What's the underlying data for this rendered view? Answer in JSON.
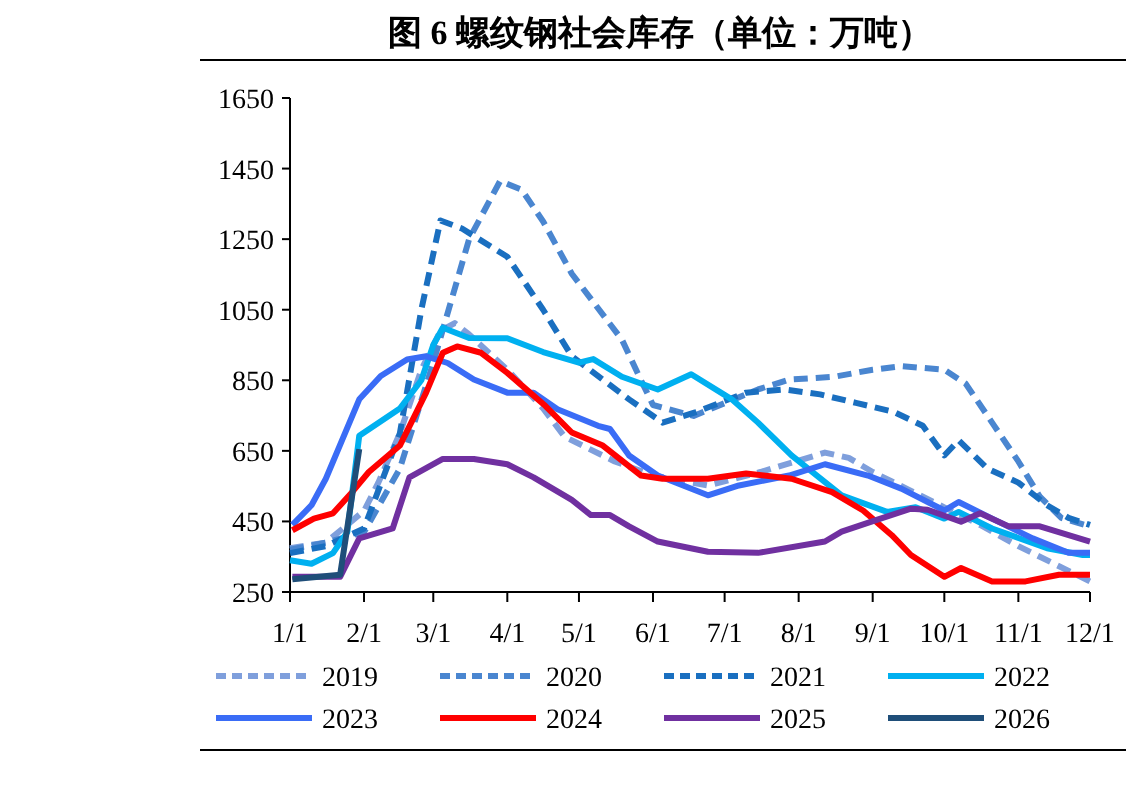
{
  "chart_data": {
    "type": "line",
    "title": "图 6 螺纹钢社会库存（单位：万吨）",
    "xlim": [
      "--01-01",
      "--12-01"
    ],
    "xticks": [
      {
        "value": "--01-01",
        "label": "1/1"
      },
      {
        "value": "--02-01",
        "label": "2/1"
      },
      {
        "value": "--03-01",
        "label": "3/1"
      },
      {
        "value": "--04-01",
        "label": "4/1"
      },
      {
        "value": "--05-01",
        "label": "5/1"
      },
      {
        "value": "--06-01",
        "label": "6/1"
      },
      {
        "value": "--07-01",
        "label": "7/1"
      },
      {
        "value": "--08-01",
        "label": "8/1"
      },
      {
        "value": "--09-01",
        "label": "9/1"
      },
      {
        "value": "--10-01",
        "label": "10/1"
      },
      {
        "value": "--11-01",
        "label": "11/1"
      },
      {
        "value": "--12-01",
        "label": "12/1"
      }
    ],
    "ylim": [
      250,
      1650
    ],
    "yticks": [
      250,
      450,
      650,
      850,
      1050,
      1250,
      1450,
      1650
    ],
    "grid": false,
    "legend": "bottom",
    "marker": "none",
    "series": [
      {
        "name": "2019",
        "color": "#7f9fdc",
        "line_style": "dashed",
        "x": [
          "--01-01",
          "--01-16",
          "--02-01",
          "--02-07",
          "--02-16",
          "--02-25",
          "--03-04",
          "--03-10",
          "--03-16",
          "--04-01",
          "--04-16",
          "--04-25",
          "--05-16",
          "--06-01",
          "--06-24",
          "--07-16",
          "--08-12",
          "--08-22",
          "--09-01",
          "--09-16",
          "--10-01",
          "--10-16",
          "--11-01",
          "--11-16",
          "--12-01"
        ],
        "values": [
          374,
          390,
          480,
          560,
          700,
          880,
          990,
          1012,
          980,
          880,
          770,
          690,
          620,
          580,
          552,
          590,
          645,
          630,
          590,
          540,
          490,
          440,
          380,
          330,
          280
        ]
      },
      {
        "name": "2020",
        "color": "#4a86d0",
        "line_style": "dashed",
        "x": [
          "--01-01",
          "--01-16",
          "--02-01",
          "--02-16",
          "--03-01",
          "--03-16",
          "--03-29",
          "--04-07",
          "--04-16",
          "--04-28",
          "--05-19",
          "--05-27",
          "--06-01",
          "--06-18",
          "--07-15",
          "--07-28",
          "--08-16",
          "--09-01",
          "--09-13",
          "--10-01",
          "--10-10",
          "--10-22",
          "--11-01",
          "--11-10",
          "--11-19",
          "--12-01"
        ],
        "values": [
          370,
          390,
          420,
          600,
          900,
          1250,
          1415,
          1390,
          1300,
          1152,
          965,
          850,
          780,
          749,
          824,
          852,
          860,
          880,
          890,
          880,
          840,
          720,
          620,
          520,
          460,
          436
        ]
      },
      {
        "name": "2021",
        "color": "#1a6fc0",
        "line_style": "dashed",
        "x": [
          "--01-01",
          "--01-16",
          "--02-01",
          "--02-16",
          "--02-25",
          "--03-04",
          "--03-13",
          "--04-01",
          "--04-16",
          "--04-28",
          "--05-22",
          "--06-05",
          "--06-19",
          "--07-10",
          "--07-26",
          "--08-10",
          "--08-25",
          "--09-10",
          "--09-22",
          "--10-01",
          "--10-07",
          "--10-19",
          "--11-01",
          "--11-13",
          "--11-22",
          "--12-01"
        ],
        "values": [
          360,
          380,
          430,
          700,
          1050,
          1303,
          1280,
          1200,
          1050,
          918,
          796,
          730,
          760,
          815,
          824,
          810,
          786,
          760,
          721,
          637,
          680,
          600,
          560,
          496,
          460,
          440
        ]
      },
      {
        "name": "2022",
        "color": "#00b0f0",
        "line_style": "solid",
        "x": [
          "--01-01",
          "--01-10",
          "--01-19",
          "--01-25",
          "--01-30",
          "--02-16",
          "--02-25",
          "--03-01",
          "--03-05",
          "--03-16",
          "--04-01",
          "--04-16",
          "--05-01",
          "--05-07",
          "--05-19",
          "--06-03",
          "--06-17",
          "--07-04",
          "--07-15",
          "--07-29",
          "--08-19",
          "--09-07",
          "--09-19",
          "--10-01",
          "--10-07",
          "--10-21",
          "--11-13",
          "--11-28",
          "--12-01"
        ],
        "values": [
          340,
          330,
          360,
          420,
          693,
          770,
          850,
          950,
          999,
          970,
          969,
          930,
          900,
          910,
          860,
          824,
          867,
          796,
          730,
          637,
          524,
          477,
          490,
          458,
          477,
          430,
          374,
          355,
          355
        ]
      },
      {
        "name": "2023",
        "color": "#3a6cf6",
        "line_style": "solid",
        "x": [
          "--01-02",
          "--01-10",
          "--01-16",
          "--01-30",
          "--02-08",
          "--02-19",
          "--02-27",
          "--03-07",
          "--03-18",
          "--04-01",
          "--04-12",
          "--04-22",
          "--05-09",
          "--05-14",
          "--05-22",
          "--06-03",
          "--06-24",
          "--07-07",
          "--07-28",
          "--08-12",
          "--08-30",
          "--09-13",
          "--10-01",
          "--10-07",
          "--10-21",
          "--11-07",
          "--11-22",
          "--12-01"
        ],
        "values": [
          440,
          496,
          571,
          796,
          862,
          909,
          918,
          899,
          852,
          815,
          815,
          768,
          721,
          712,
          637,
          580,
          524,
          552,
          580,
          612,
          580,
          543,
          481,
          505,
          458,
          402,
          361,
          361
        ]
      },
      {
        "name": "2024",
        "color": "#ff0000",
        "line_style": "solid",
        "x": [
          "--01-02",
          "--01-11",
          "--01-19",
          "--01-27",
          "--02-03",
          "--02-16",
          "--02-27",
          "--03-05",
          "--03-11",
          "--03-21",
          "--04-01",
          "--04-17",
          "--04-28",
          "--05-11",
          "--05-27",
          "--06-05",
          "--06-24",
          "--07-10",
          "--07-29",
          "--08-15",
          "--08-28",
          "--09-09",
          "--09-17",
          "--10-01",
          "--10-08",
          "--10-21",
          "--11-04",
          "--11-18",
          "--12-01"
        ],
        "values": [
          425,
          458,
          473,
          533,
          590,
          665,
          815,
          928,
          946,
          928,
          871,
          777,
          702,
          665,
          580,
          571,
          571,
          586,
          571,
          533,
          481,
          411,
          355,
          293,
          318,
          280,
          280,
          299,
          299
        ]
      },
      {
        "name": "2025",
        "color": "#7030a0",
        "line_style": "solid",
        "x": [
          "--01-02",
          "--01-22",
          "--01-30",
          "--02-13",
          "--02-20",
          "--03-05",
          "--03-18",
          "--04-01",
          "--04-12",
          "--04-28",
          "--05-06",
          "--05-14",
          "--05-22",
          "--06-03",
          "--06-24",
          "--07-15",
          "--08-12",
          "--08-19",
          "--09-03",
          "--09-17",
          "--09-24",
          "--10-08",
          "--10-16",
          "--10-28",
          "--11-10",
          "--12-01"
        ],
        "values": [
          293,
          293,
          402,
          430,
          575,
          627,
          627,
          612,
          575,
          511,
          468,
          468,
          436,
          393,
          364,
          361,
          393,
          421,
          455,
          486,
          483,
          449,
          473,
          436,
          436,
          393
        ]
      },
      {
        "name": "2026",
        "color": "#1f4e79",
        "line_style": "solid",
        "x": [
          "--01-02",
          "--01-22",
          "--01-30"
        ],
        "values": [
          286,
          299,
          655
        ]
      }
    ]
  }
}
